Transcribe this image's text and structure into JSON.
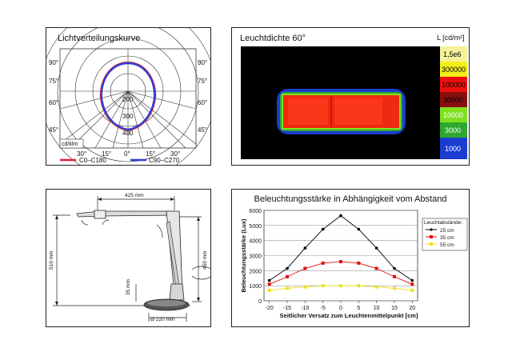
{
  "polar": {
    "title": "Lichtverteilungskurve",
    "left_angles": [
      "90°",
      "75°",
      "60°",
      "45°"
    ],
    "right_angles": [
      "90°",
      "75°",
      "60°",
      "45°"
    ],
    "bottom_angles": [
      "30°",
      "15°",
      "0°",
      "15°",
      "30°"
    ],
    "radial_labels": [
      "200",
      "300",
      "400"
    ],
    "unit": "cd/klm",
    "legend": [
      {
        "label": "C0–C180",
        "color": "#e0202a"
      },
      {
        "label": "C90–C270",
        "color": "#2f3fd8"
      }
    ]
  },
  "heatmap": {
    "title": "Leuchtdichte 60°",
    "unit": "L [cd/m²]",
    "scale": [
      {
        "label": "1,5e6",
        "color": "#f5f29a"
      },
      {
        "label": "300000",
        "color": "#f2ef1a"
      },
      {
        "label": "100000",
        "color": "#ee1010"
      },
      {
        "label": "30000",
        "color": "#8a1010"
      },
      {
        "label": "10000",
        "color": "#80e020"
      },
      {
        "label": "3000",
        "color": "#2ea82e"
      },
      {
        "label": "1000",
        "color": "#1a3cd0"
      }
    ]
  },
  "dims": {
    "width_label": "425 mm",
    "height_left": "510 mm",
    "height_right": "450 mm",
    "base_height": "35 mm",
    "base_diameter": "Ø 220 mm"
  },
  "chart_data": {
    "type": "line",
    "title": "Beleuchtungsstärke in Abhängigkeit vom Abstand",
    "xlabel": "Seitlicher Versatz zum Leuchtenmittelpunkt [cm]",
    "ylabel": "Beleuchtungsstärke (Lux)",
    "x": [
      -20,
      -15,
      -10,
      -5,
      0,
      5,
      10,
      15,
      20
    ],
    "xlim": [
      -21.5,
      21.5
    ],
    "ylim": [
      0,
      6000
    ],
    "yticks": [
      "0",
      "1000",
      "2000",
      "3000",
      "4000",
      "5000",
      "6000"
    ],
    "xticks": [
      "-20",
      "-15",
      "-10",
      "-5",
      "0",
      "5",
      "10",
      "15",
      "20"
    ],
    "grid": true,
    "legend_title": "Leuchtabstände:",
    "legend_position": "right",
    "series": [
      {
        "name": "25 cm",
        "color": "#000000",
        "values": [
          1350,
          2150,
          3500,
          4750,
          5650,
          4750,
          3500,
          2150,
          1350
        ]
      },
      {
        "name": "35 cm",
        "color": "#e01010",
        "values": [
          1100,
          1600,
          2150,
          2500,
          2600,
          2500,
          2150,
          1600,
          1100
        ]
      },
      {
        "name": "55 cm",
        "color": "#f0e020",
        "values": [
          700,
          830,
          920,
          1000,
          1000,
          1000,
          920,
          830,
          700
        ]
      }
    ]
  }
}
